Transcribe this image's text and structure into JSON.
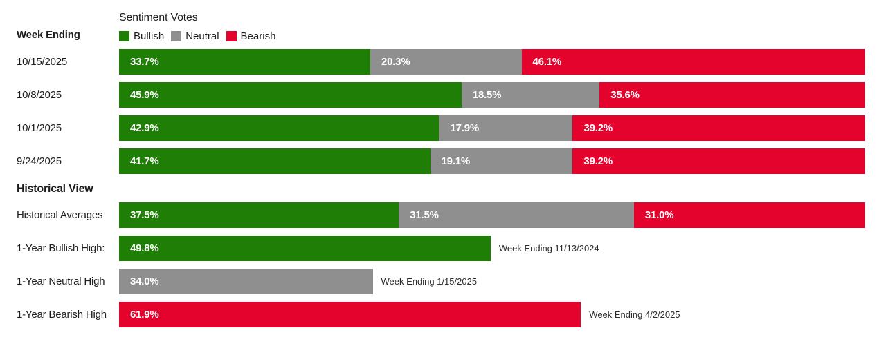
{
  "header": {
    "week_ending_label": "Week Ending",
    "title": "Sentiment Votes",
    "legend": [
      {
        "name": "Bullish",
        "color": "#1e7e06"
      },
      {
        "name": "Neutral",
        "color": "#8f8f8f"
      },
      {
        "name": "Bearish",
        "color": "#e4032c"
      }
    ]
  },
  "colors": {
    "bullish": "#1e7e06",
    "neutral": "#8f8f8f",
    "bearish": "#e4032c"
  },
  "weekly_rows": [
    {
      "date": "10/15/2025",
      "bullish": 33.7,
      "bullish_label": "33.7%",
      "neutral": 20.3,
      "neutral_label": "20.3%",
      "bearish": 46.1,
      "bearish_label": "46.1%"
    },
    {
      "date": "10/8/2025",
      "bullish": 45.9,
      "bullish_label": "45.9%",
      "neutral": 18.5,
      "neutral_label": "18.5%",
      "bearish": 35.6,
      "bearish_label": "35.6%"
    },
    {
      "date": "10/1/2025",
      "bullish": 42.9,
      "bullish_label": "42.9%",
      "neutral": 17.9,
      "neutral_label": "17.9%",
      "bearish": 39.2,
      "bearish_label": "39.2%"
    },
    {
      "date": "9/24/2025",
      "bullish": 41.7,
      "bullish_label": "41.7%",
      "neutral": 19.1,
      "neutral_label": "19.1%",
      "bearish": 39.2,
      "bearish_label": "39.2%"
    }
  ],
  "historical": {
    "heading": "Historical View",
    "averages": {
      "label": "Historical Averages",
      "bullish": 37.5,
      "bullish_label": "37.5%",
      "neutral": 31.5,
      "neutral_label": "31.5%",
      "bearish": 31.0,
      "bearish_label": "31.0%"
    },
    "highs": [
      {
        "label": "1-Year Bullish High:",
        "series": "Bullish",
        "value": 49.8,
        "value_label": "49.8%",
        "annotation": "Week Ending 11/13/2024"
      },
      {
        "label": "1-Year Neutral High",
        "series": "Neutral",
        "value": 34.0,
        "value_label": "34.0%",
        "annotation": "Week Ending 1/15/2025"
      },
      {
        "label": "1-Year Bearish High",
        "series": "Bearish",
        "value": 61.9,
        "value_label": "61.9%",
        "annotation": "Week Ending 4/2/2025"
      }
    ]
  },
  "chart_data": [
    {
      "type": "bar",
      "orientation": "horizontal",
      "stacked": true,
      "title": "Sentiment Votes",
      "ylabel": "Week Ending",
      "xlabel": "",
      "xlim": [
        0,
        100
      ],
      "value_format": "percent",
      "grid": false,
      "legend_position": "top",
      "categories": [
        "10/15/2025",
        "10/8/2025",
        "10/1/2025",
        "9/24/2025"
      ],
      "series": [
        {
          "name": "Bullish",
          "color": "#1e7e06",
          "values": [
            33.7,
            45.9,
            42.9,
            41.7
          ]
        },
        {
          "name": "Neutral",
          "color": "#8f8f8f",
          "values": [
            20.3,
            18.5,
            17.9,
            19.1
          ]
        },
        {
          "name": "Bearish",
          "color": "#e4032c",
          "values": [
            46.1,
            35.6,
            39.2,
            39.2
          ]
        }
      ]
    },
    {
      "type": "bar",
      "orientation": "horizontal",
      "title": "Historical View",
      "xlim": [
        0,
        100
      ],
      "value_format": "percent",
      "grid": false,
      "rows": [
        {
          "label": "Historical Averages",
          "stacked": true,
          "values": {
            "Bullish": 37.5,
            "Neutral": 31.5,
            "Bearish": 31.0
          }
        },
        {
          "label": "1-Year Bullish High:",
          "series": "Bullish",
          "value": 49.8,
          "annotation": "Week Ending 11/13/2024"
        },
        {
          "label": "1-Year Neutral High",
          "series": "Neutral",
          "value": 34.0,
          "annotation": "Week Ending 1/15/2025"
        },
        {
          "label": "1-Year Bearish High",
          "series": "Bearish",
          "value": 61.9,
          "annotation": "Week Ending 4/2/2025"
        }
      ]
    }
  ]
}
